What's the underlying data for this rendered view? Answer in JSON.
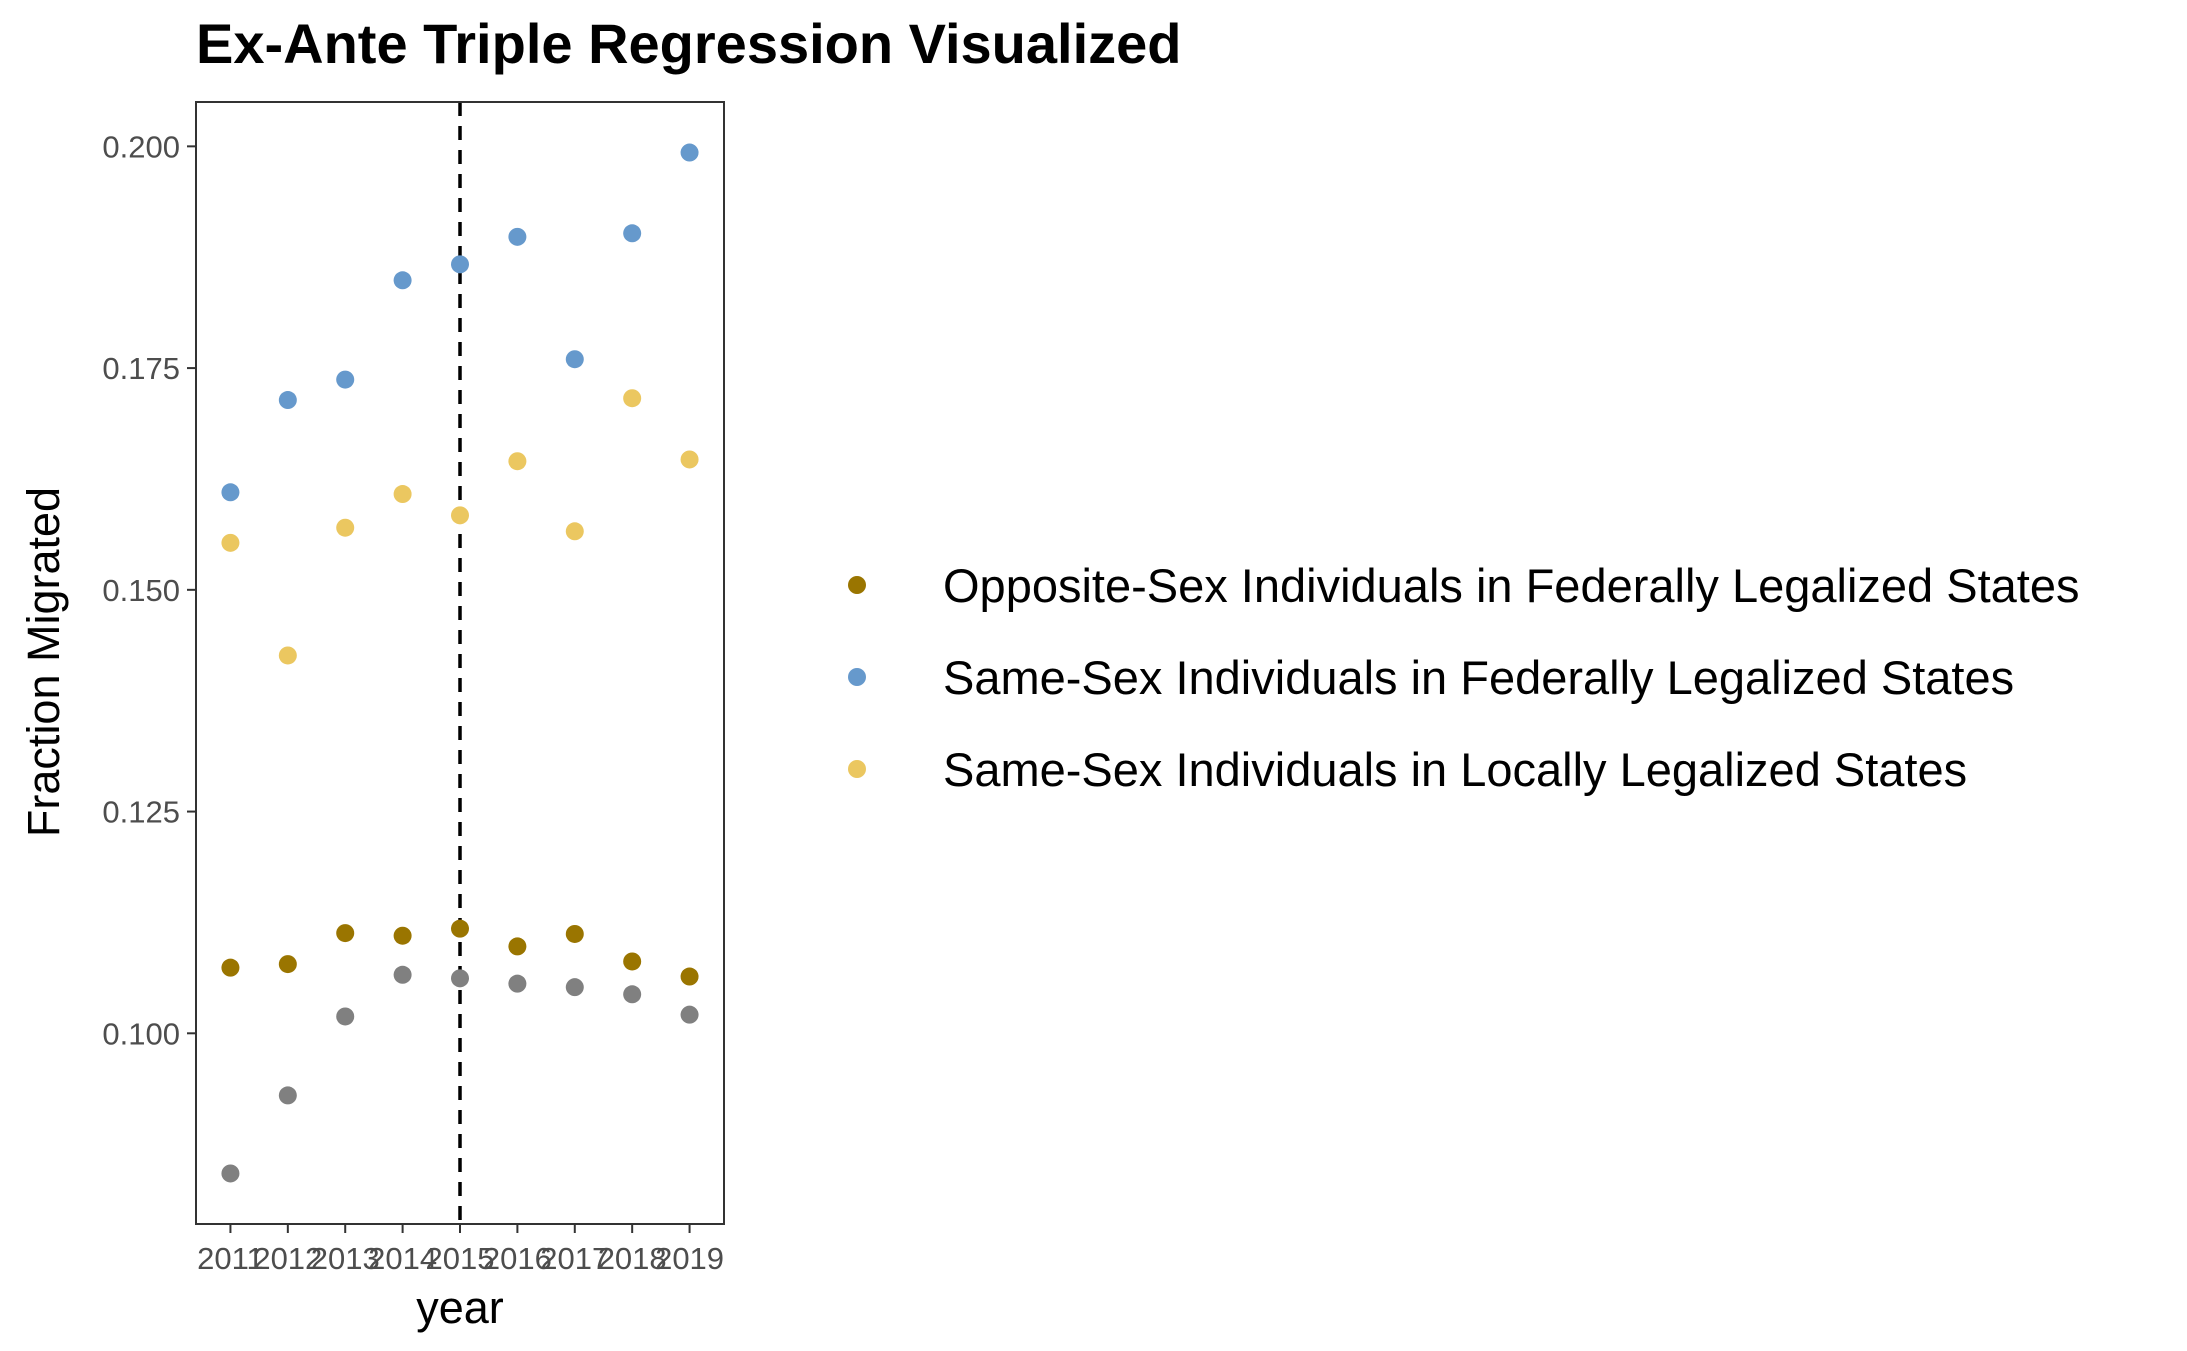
{
  "chart_data": {
    "type": "scatter",
    "title": "Ex-Ante Triple Regression Visualized",
    "xlabel": "year",
    "ylabel": "Fraction Migrated",
    "x": [
      2011,
      2012,
      2013,
      2014,
      2015,
      2016,
      2017,
      2018,
      2019
    ],
    "x_tick_labels": [
      "2011",
      "2012",
      "2013",
      "2014",
      "2015",
      "2016",
      "2017",
      "2018",
      "2019"
    ],
    "xlim": [
      2010.4,
      2019.6
    ],
    "ylim": [
      0.0785,
      0.205
    ],
    "y_ticks": [
      0.1,
      0.125,
      0.15,
      0.175,
      0.2
    ],
    "y_tick_labels": [
      "0.100",
      "0.125",
      "0.150",
      "0.175",
      "0.200"
    ],
    "vline": {
      "x": 2015,
      "style": "dashed",
      "color": "#000000"
    },
    "grid": false,
    "legend_position": "right",
    "series": [
      {
        "name": "Opposite-Sex Individuals in Federally Legalized States",
        "color": "#9a7500",
        "in_legend": true,
        "values": [
          0.1074,
          0.1078,
          0.1113,
          0.111,
          0.1118,
          0.1098,
          0.1112,
          0.1081,
          0.1064
        ]
      },
      {
        "name": "Same-Sex Individuals in Federally Legalized States",
        "color": "#6699cc",
        "in_legend": true,
        "values": [
          0.161,
          0.1714,
          0.1737,
          0.1849,
          0.1867,
          0.1898,
          0.176,
          0.1902,
          0.1993
        ]
      },
      {
        "name": "Same-Sex Individuals in Locally Legalized States",
        "color": "#ebc760",
        "in_legend": true,
        "values": [
          0.1553,
          0.1426,
          0.157,
          0.1608,
          0.1584,
          0.1645,
          0.1566,
          0.1716,
          0.1647
        ]
      },
      {
        "color": "#808080",
        "in_legend": false,
        "values": [
          0.0842,
          0.093,
          0.1019,
          0.1066,
          0.1062,
          0.1056,
          0.1052,
          0.1044,
          0.1021
        ]
      }
    ]
  }
}
